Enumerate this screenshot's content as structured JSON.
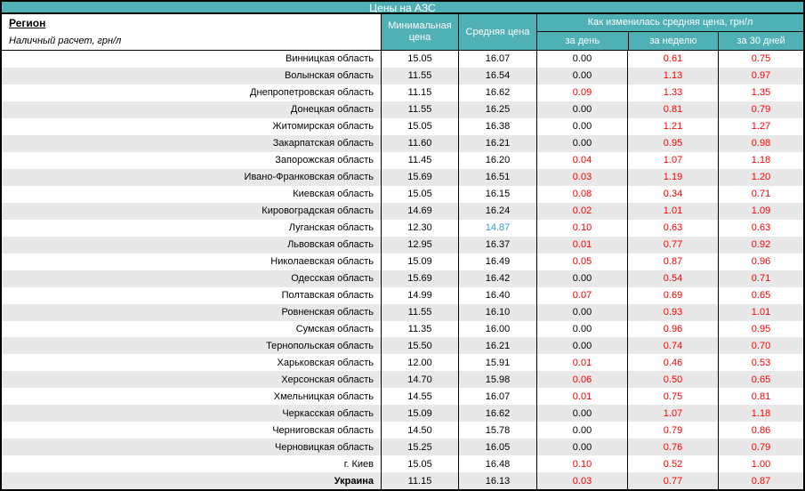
{
  "title": "Цены на АЗС",
  "region_header": {
    "title": "Регион",
    "subtitle": "Наличный расчет, грн/л"
  },
  "columns": {
    "min": "Минимальная цена",
    "avg": "Средняя цена",
    "change_group": "Как изменилась средняя цена, грн/л",
    "day": "за день",
    "week": "за неделю",
    "month": "за 30 дней"
  },
  "colors": {
    "accent_teal": "#4FB0B5",
    "row_alt_gray": "#E8E8E8",
    "change_red": "#FF0000",
    "highlight_blue": "#2E9BD5",
    "border_black": "#000000"
  },
  "chart_data": {
    "type": "table",
    "title": "Цены на АЗС",
    "columns": [
      "Регион",
      "Минимальная цена",
      "Средняя цена",
      "за день",
      "за неделю",
      "за 30 дней"
    ],
    "column_group": {
      "label": "Как изменилась средняя цена, грн/л",
      "spans": [
        "за день",
        "за неделю",
        "за 30 дней"
      ]
    },
    "rows": [
      {
        "region": "Винницкая область",
        "min": "15.05",
        "avg": "16.07",
        "day": "0.00",
        "week": "0.61",
        "month": "0.75",
        "day_changed": false,
        "avg_highlight": false,
        "bold": false
      },
      {
        "region": "Волынская область",
        "min": "11.55",
        "avg": "16.54",
        "day": "0.00",
        "week": "1.13",
        "month": "0.97",
        "day_changed": false,
        "avg_highlight": false,
        "bold": false
      },
      {
        "region": "Днепропетровская область",
        "min": "11.15",
        "avg": "16.62",
        "day": "0.09",
        "week": "1.33",
        "month": "1.35",
        "day_changed": true,
        "avg_highlight": false,
        "bold": false
      },
      {
        "region": "Донецкая область",
        "min": "11.55",
        "avg": "16.25",
        "day": "0.00",
        "week": "0.81",
        "month": "0.79",
        "day_changed": false,
        "avg_highlight": false,
        "bold": false
      },
      {
        "region": "Житомирская область",
        "min": "15.05",
        "avg": "16.38",
        "day": "0.00",
        "week": "1.21",
        "month": "1.27",
        "day_changed": false,
        "avg_highlight": false,
        "bold": false
      },
      {
        "region": "Закарпатская область",
        "min": "11.60",
        "avg": "16.21",
        "day": "0.00",
        "week": "0.95",
        "month": "0.98",
        "day_changed": false,
        "avg_highlight": false,
        "bold": false
      },
      {
        "region": "Запорожская область",
        "min": "11.45",
        "avg": "16.20",
        "day": "0.04",
        "week": "1.07",
        "month": "1.18",
        "day_changed": true,
        "avg_highlight": false,
        "bold": false
      },
      {
        "region": "Ивано-Франковская область",
        "min": "15.69",
        "avg": "16.51",
        "day": "0.03",
        "week": "1.19",
        "month": "1.20",
        "day_changed": true,
        "avg_highlight": false,
        "bold": false
      },
      {
        "region": "Киевская область",
        "min": "15.05",
        "avg": "16.15",
        "day": "0.08",
        "week": "0.34",
        "month": "0.71",
        "day_changed": true,
        "avg_highlight": false,
        "bold": false
      },
      {
        "region": "Кировоградская область",
        "min": "14.69",
        "avg": "16.24",
        "day": "0.02",
        "week": "1.01",
        "month": "1.09",
        "day_changed": true,
        "avg_highlight": false,
        "bold": false
      },
      {
        "region": "Луганская область",
        "min": "12.30",
        "avg": "14.87",
        "day": "0.10",
        "week": "0.63",
        "month": "0.63",
        "day_changed": true,
        "avg_highlight": true,
        "bold": false
      },
      {
        "region": "Львовская область",
        "min": "12.95",
        "avg": "16.37",
        "day": "0.01",
        "week": "0.77",
        "month": "0.92",
        "day_changed": true,
        "avg_highlight": false,
        "bold": false
      },
      {
        "region": "Николаевская область",
        "min": "15.09",
        "avg": "16.49",
        "day": "0.05",
        "week": "0.87",
        "month": "0.96",
        "day_changed": true,
        "avg_highlight": false,
        "bold": false
      },
      {
        "region": "Одесская область",
        "min": "15.69",
        "avg": "16.42",
        "day": "0.00",
        "week": "0.54",
        "month": "0.71",
        "day_changed": false,
        "avg_highlight": false,
        "bold": false
      },
      {
        "region": "Полтавская область",
        "min": "14.99",
        "avg": "16.40",
        "day": "0.07",
        "week": "0.69",
        "month": "0.65",
        "day_changed": true,
        "avg_highlight": false,
        "bold": false
      },
      {
        "region": "Ровненская область",
        "min": "11.55",
        "avg": "16.10",
        "day": "0.00",
        "week": "0.93",
        "month": "1.01",
        "day_changed": false,
        "avg_highlight": false,
        "bold": false
      },
      {
        "region": "Сумская область",
        "min": "11.35",
        "avg": "16.00",
        "day": "0.00",
        "week": "0.96",
        "month": "0.95",
        "day_changed": false,
        "avg_highlight": false,
        "bold": false
      },
      {
        "region": "Тернопольская область",
        "min": "15.50",
        "avg": "16.21",
        "day": "0.00",
        "week": "0.74",
        "month": "0.70",
        "day_changed": false,
        "avg_highlight": false,
        "bold": false
      },
      {
        "region": "Харьковская область",
        "min": "12.00",
        "avg": "15.91",
        "day": "0.01",
        "week": "0.46",
        "month": "0.53",
        "day_changed": true,
        "avg_highlight": false,
        "bold": false
      },
      {
        "region": "Херсонская область",
        "min": "14.70",
        "avg": "15.98",
        "day": "0.06",
        "week": "0.50",
        "month": "0.65",
        "day_changed": true,
        "avg_highlight": false,
        "bold": false
      },
      {
        "region": "Хмельницкая область",
        "min": "14.55",
        "avg": "16.07",
        "day": "0.01",
        "week": "0.75",
        "month": "0.81",
        "day_changed": true,
        "avg_highlight": false,
        "bold": false
      },
      {
        "region": "Черкасская область",
        "min": "15.09",
        "avg": "16.62",
        "day": "0.00",
        "week": "1.07",
        "month": "1.18",
        "day_changed": false,
        "avg_highlight": false,
        "bold": false
      },
      {
        "region": "Черниговская область",
        "min": "14.50",
        "avg": "15.78",
        "day": "0.00",
        "week": "0.79",
        "month": "0.86",
        "day_changed": false,
        "avg_highlight": false,
        "bold": false
      },
      {
        "region": "Черновицкая область",
        "min": "15.25",
        "avg": "16.05",
        "day": "0.00",
        "week": "0.76",
        "month": "0.79",
        "day_changed": false,
        "avg_highlight": false,
        "bold": false
      },
      {
        "region": "г. Киев",
        "min": "15.05",
        "avg": "16.48",
        "day": "0.10",
        "week": "0.52",
        "month": "1.00",
        "day_changed": true,
        "avg_highlight": false,
        "bold": false
      },
      {
        "region": "Украина",
        "min": "11.15",
        "avg": "16.13",
        "day": "0.03",
        "week": "0.77",
        "month": "0.87",
        "day_changed": true,
        "avg_highlight": false,
        "bold": true
      }
    ]
  }
}
